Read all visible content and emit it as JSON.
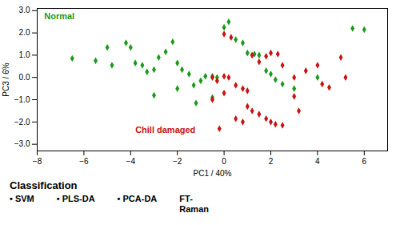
{
  "chart_data": {
    "type": "scatter",
    "title": "Classification",
    "xlabel": "PC1 / 40%",
    "ylabel": "PC3 / 6%",
    "xlim": [
      -8,
      7
    ],
    "ylim": [
      -3.3,
      3.1
    ],
    "xticks": [
      -8,
      -6,
      -4,
      -2,
      0,
      2,
      4,
      6
    ],
    "yticks": [
      -3,
      -2,
      -1,
      0,
      1,
      2,
      3
    ],
    "grid": false,
    "series": [
      {
        "name": "Normal",
        "color": "#1a9a1a",
        "marker": "diamond",
        "x": [
          -6.5,
          -5.5,
          -5.0,
          -4.8,
          -4.2,
          -4.0,
          -3.8,
          -3.5,
          -3.3,
          -3.0,
          -2.8,
          -2.5,
          -2.2,
          -2.0,
          -1.8,
          -1.5,
          -1.3,
          -1.0,
          -0.8,
          -0.5,
          -0.3,
          0.0,
          0.2,
          0.5,
          0.8,
          1.0,
          1.3,
          1.5,
          1.8,
          2.0,
          2.2,
          2.5,
          3.0,
          4.0,
          5.5,
          6.0,
          -0.5,
          -1.2,
          -2.0,
          -3.0
        ],
        "y": [
          0.85,
          0.75,
          1.35,
          0.55,
          1.55,
          1.35,
          0.65,
          0.55,
          0.25,
          0.35,
          0.9,
          1.15,
          1.6,
          0.65,
          0.35,
          0.15,
          -0.35,
          -0.15,
          0.05,
          0.05,
          0.0,
          2.25,
          2.5,
          1.7,
          1.55,
          1.1,
          1.05,
          1.0,
          0.3,
          0.15,
          -0.1,
          -0.3,
          -0.5,
          0.0,
          2.2,
          2.15,
          -0.9,
          -1.15,
          -0.5,
          -0.8
        ]
      },
      {
        "name": "Chill damaged",
        "color": "#cc1111",
        "marker": "diamond",
        "x": [
          -0.5,
          -0.3,
          0.0,
          0.2,
          0.5,
          0.8,
          1.0,
          1.2,
          1.5,
          1.8,
          2.0,
          2.3,
          2.5,
          3.0,
          3.5,
          4.0,
          4.2,
          4.5,
          1.0,
          1.2,
          1.5,
          1.8,
          2.0,
          2.2,
          2.5,
          0.5,
          0.8,
          -0.2,
          0.0,
          0.3,
          -0.5,
          0.0,
          3.0,
          3.2,
          5.0,
          5.2
        ],
        "y": [
          0.0,
          -0.15,
          0.05,
          0.0,
          -0.35,
          -0.5,
          -0.6,
          1.0,
          0.7,
          0.95,
          1.1,
          1.05,
          0.55,
          0.0,
          0.3,
          0.55,
          -0.3,
          -0.45,
          -1.3,
          -1.5,
          -1.65,
          -1.85,
          -2.0,
          -2.1,
          -2.15,
          -1.85,
          -2.0,
          -2.3,
          1.95,
          1.8,
          -1.0,
          -0.7,
          -0.85,
          -1.5,
          0.9,
          0.0
        ]
      }
    ],
    "annotations": [
      {
        "text": "Normal",
        "x": -7.7,
        "y": 2.9,
        "color": "#1a9a1a"
      },
      {
        "text": "Chill damaged",
        "x": -3.8,
        "y": -2.2,
        "color": "#cc1111"
      },
      {
        "text": "•  SVM"
      },
      {
        "text": "•  PLS-DA"
      },
      {
        "text": "•  PCA-DA"
      },
      {
        "text": "FT-\nRaman"
      }
    ]
  }
}
